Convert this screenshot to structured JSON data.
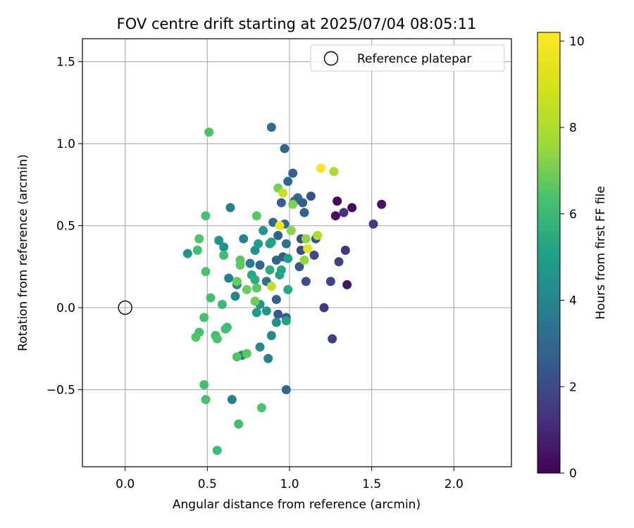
{
  "chart_data": {
    "type": "scatter",
    "title": "FOV centre drift starting at 2025/07/04 08:05:11",
    "xlabel": "Angular distance from reference (arcmin)",
    "ylabel": "Rotation from reference (arcmin)",
    "xlim": [
      -0.26,
      2.35
    ],
    "ylim": [
      -0.97,
      1.64
    ],
    "xticks": [
      0.0,
      0.5,
      1.0,
      1.5,
      2.0
    ],
    "yticks": [
      -0.5,
      0.0,
      0.5,
      1.0,
      1.5
    ],
    "xtick_labels": [
      "0.0",
      "0.5",
      "1.0",
      "1.5",
      "2.0"
    ],
    "ytick_labels": [
      "−0.5",
      "0.0",
      "0.5",
      "1.0",
      "1.5"
    ],
    "grid": true,
    "colormap": "viridis",
    "legend": {
      "position": "top-right",
      "entries": [
        {
          "label": "Reference platepar",
          "marker": "open-circle"
        }
      ]
    },
    "reference_point": {
      "x": 0.0,
      "y": 0.0,
      "label": "Reference platepar"
    },
    "colorbar": {
      "label": "Hours from first FF file",
      "range": [
        0,
        10.2
      ],
      "ticks": [
        0,
        2,
        4,
        6,
        8,
        10
      ],
      "tick_labels": [
        "0",
        "2",
        "4",
        "6",
        "8",
        "10"
      ]
    },
    "points": [
      {
        "x": 1.29,
        "y": 0.65,
        "c": 0.2
      },
      {
        "x": 1.38,
        "y": 0.61,
        "c": 0.3
      },
      {
        "x": 1.56,
        "y": 0.63,
        "c": 0.5
      },
      {
        "x": 1.28,
        "y": 0.56,
        "c": 0.4
      },
      {
        "x": 1.35,
        "y": 0.14,
        "c": 0.6
      },
      {
        "x": 1.33,
        "y": 0.58,
        "c": 1.5
      },
      {
        "x": 1.51,
        "y": 0.51,
        "c": 1.8
      },
      {
        "x": 1.34,
        "y": 0.35,
        "c": 1.6
      },
      {
        "x": 1.3,
        "y": 0.28,
        "c": 1.9
      },
      {
        "x": 1.21,
        "y": 0.0,
        "c": 1.7
      },
      {
        "x": 1.25,
        "y": 0.16,
        "c": 2.0
      },
      {
        "x": 1.26,
        "y": -0.19,
        "c": 1.9
      },
      {
        "x": 1.13,
        "y": 0.68,
        "c": 2.5
      },
      {
        "x": 1.15,
        "y": 0.32,
        "c": 2.3
      },
      {
        "x": 1.16,
        "y": 0.42,
        "c": 2.6
      },
      {
        "x": 1.1,
        "y": 0.16,
        "c": 2.4
      },
      {
        "x": 1.07,
        "y": 0.42,
        "c": 2.2
      },
      {
        "x": 1.07,
        "y": 0.35,
        "c": 2.1
      },
      {
        "x": 1.06,
        "y": 0.25,
        "c": 2.8
      },
      {
        "x": 0.89,
        "y": 1.1,
        "c": 3.7
      },
      {
        "x": 0.97,
        "y": 0.97,
        "c": 3.3
      },
      {
        "x": 1.02,
        "y": 0.82,
        "c": 3.2
      },
      {
        "x": 0.99,
        "y": 0.77,
        "c": 3.4
      },
      {
        "x": 1.05,
        "y": 0.67,
        "c": 3.5
      },
      {
        "x": 1.08,
        "y": 0.64,
        "c": 3.0
      },
      {
        "x": 1.03,
        "y": 0.65,
        "c": 3.3
      },
      {
        "x": 0.95,
        "y": 0.64,
        "c": 3.1
      },
      {
        "x": 1.09,
        "y": 0.58,
        "c": 3.2
      },
      {
        "x": 0.9,
        "y": 0.52,
        "c": 3.5
      },
      {
        "x": 0.97,
        "y": 0.51,
        "c": 3.4
      },
      {
        "x": 0.93,
        "y": 0.44,
        "c": 3.2
      },
      {
        "x": 0.98,
        "y": 0.39,
        "c": 3.7
      },
      {
        "x": 0.96,
        "y": 0.31,
        "c": 2.9
      },
      {
        "x": 0.92,
        "y": 0.29,
        "c": 3.3
      },
      {
        "x": 0.82,
        "y": 0.26,
        "c": 3.4
      },
      {
        "x": 0.86,
        "y": 0.16,
        "c": 3.7
      },
      {
        "x": 0.92,
        "y": 0.05,
        "c": 3.1
      },
      {
        "x": 0.93,
        "y": -0.04,
        "c": 2.8
      },
      {
        "x": 0.98,
        "y": -0.06,
        "c": 3.0
      },
      {
        "x": 0.98,
        "y": -0.5,
        "c": 3.4
      },
      {
        "x": 0.64,
        "y": 0.61,
        "c": 4.4
      },
      {
        "x": 0.72,
        "y": 0.42,
        "c": 4.5
      },
      {
        "x": 0.76,
        "y": 0.27,
        "c": 4.3
      },
      {
        "x": 0.63,
        "y": 0.18,
        "c": 4.4
      },
      {
        "x": 0.68,
        "y": 0.14,
        "c": 4.5
      },
      {
        "x": 0.67,
        "y": 0.07,
        "c": 4.6
      },
      {
        "x": 0.71,
        "y": -0.29,
        "c": 4.3
      },
      {
        "x": 0.65,
        "y": -0.56,
        "c": 4.4
      },
      {
        "x": 0.87,
        "y": -0.31,
        "c": 4.4
      },
      {
        "x": 0.82,
        "y": -0.24,
        "c": 4.8
      },
      {
        "x": 0.89,
        "y": -0.17,
        "c": 4.9
      },
      {
        "x": 0.38,
        "y": 0.33,
        "c": 5.2
      },
      {
        "x": 0.57,
        "y": 0.41,
        "c": 5.3
      },
      {
        "x": 0.6,
        "y": 0.37,
        "c": 5.1
      },
      {
        "x": 0.84,
        "y": 0.47,
        "c": 5.4
      },
      {
        "x": 0.88,
        "y": 0.39,
        "c": 5.5
      },
      {
        "x": 0.79,
        "y": 0.35,
        "c": 5.1
      },
      {
        "x": 0.82,
        "y": 0.02,
        "c": 5.2
      },
      {
        "x": 0.8,
        "y": -0.03,
        "c": 5.4
      },
      {
        "x": 0.86,
        "y": -0.02,
        "c": 5.3
      },
      {
        "x": 0.92,
        "y": -0.09,
        "c": 5.0
      },
      {
        "x": 0.98,
        "y": -0.08,
        "c": 5.8
      },
      {
        "x": 0.81,
        "y": 0.39,
        "c": 5.7
      },
      {
        "x": 0.89,
        "y": 0.4,
        "c": 5.9
      },
      {
        "x": 0.99,
        "y": 0.3,
        "c": 5.6
      },
      {
        "x": 0.94,
        "y": 0.2,
        "c": 5.8
      },
      {
        "x": 0.95,
        "y": 0.23,
        "c": 6.1
      },
      {
        "x": 0.88,
        "y": 0.23,
        "c": 6.3
      },
      {
        "x": 0.77,
        "y": 0.2,
        "c": 6.1
      },
      {
        "x": 0.79,
        "y": 0.17,
        "c": 6.4
      },
      {
        "x": 0.99,
        "y": 0.11,
        "c": 6.2
      },
      {
        "x": 0.51,
        "y": 1.07,
        "c": 7.3
      },
      {
        "x": 0.49,
        "y": 0.56,
        "c": 7.2
      },
      {
        "x": 0.45,
        "y": 0.42,
        "c": 7.4
      },
      {
        "x": 0.44,
        "y": 0.35,
        "c": 7.1
      },
      {
        "x": 0.6,
        "y": 0.32,
        "c": 7.0
      },
      {
        "x": 0.49,
        "y": 0.22,
        "c": 7.3
      },
      {
        "x": 0.52,
        "y": 0.06,
        "c": 7.1
      },
      {
        "x": 0.59,
        "y": 0.02,
        "c": 6.9
      },
      {
        "x": 0.48,
        "y": -0.06,
        "c": 7.2
      },
      {
        "x": 0.62,
        "y": -0.12,
        "c": 6.8
      },
      {
        "x": 0.61,
        "y": -0.13,
        "c": 7.1
      },
      {
        "x": 0.45,
        "y": -0.15,
        "c": 7.2
      },
      {
        "x": 0.43,
        "y": -0.18,
        "c": 7.4
      },
      {
        "x": 0.55,
        "y": -0.17,
        "c": 7.1
      },
      {
        "x": 0.56,
        "y": -0.19,
        "c": 7.3
      },
      {
        "x": 0.68,
        "y": -0.3,
        "c": 7.4
      },
      {
        "x": 0.74,
        "y": -0.28,
        "c": 7.6
      },
      {
        "x": 0.48,
        "y": -0.47,
        "c": 7.1
      },
      {
        "x": 0.49,
        "y": -0.56,
        "c": 7.2
      },
      {
        "x": 0.83,
        "y": -0.61,
        "c": 7.3
      },
      {
        "x": 0.69,
        "y": -0.71,
        "c": 7.1
      },
      {
        "x": 0.56,
        "y": -0.87,
        "c": 7.0
      },
      {
        "x": 0.8,
        "y": 0.56,
        "c": 7.6
      },
      {
        "x": 0.7,
        "y": 0.29,
        "c": 7.5
      },
      {
        "x": 0.7,
        "y": 0.26,
        "c": 7.7
      },
      {
        "x": 0.68,
        "y": 0.16,
        "c": 7.8
      },
      {
        "x": 0.74,
        "y": 0.11,
        "c": 7.9
      },
      {
        "x": 0.8,
        "y": 0.12,
        "c": 7.6
      },
      {
        "x": 0.79,
        "y": 0.04,
        "c": 8.0
      },
      {
        "x": 0.93,
        "y": 0.73,
        "c": 8.1
      },
      {
        "x": 1.02,
        "y": 0.63,
        "c": 8.2
      },
      {
        "x": 1.01,
        "y": 0.47,
        "c": 8.4
      },
      {
        "x": 1.1,
        "y": 0.42,
        "c": 8.5
      },
      {
        "x": 1.09,
        "y": 0.29,
        "c": 8.6
      },
      {
        "x": 1.27,
        "y": 0.83,
        "c": 8.9
      },
      {
        "x": 1.17,
        "y": 0.44,
        "c": 9.0
      },
      {
        "x": 0.96,
        "y": 0.7,
        "c": 9.3
      },
      {
        "x": 0.89,
        "y": 0.13,
        "c": 9.2
      },
      {
        "x": 1.19,
        "y": 0.85,
        "c": 10.1
      },
      {
        "x": 0.94,
        "y": 0.5,
        "c": 10.0
      },
      {
        "x": 1.11,
        "y": 0.36,
        "c": 9.8
      }
    ]
  }
}
